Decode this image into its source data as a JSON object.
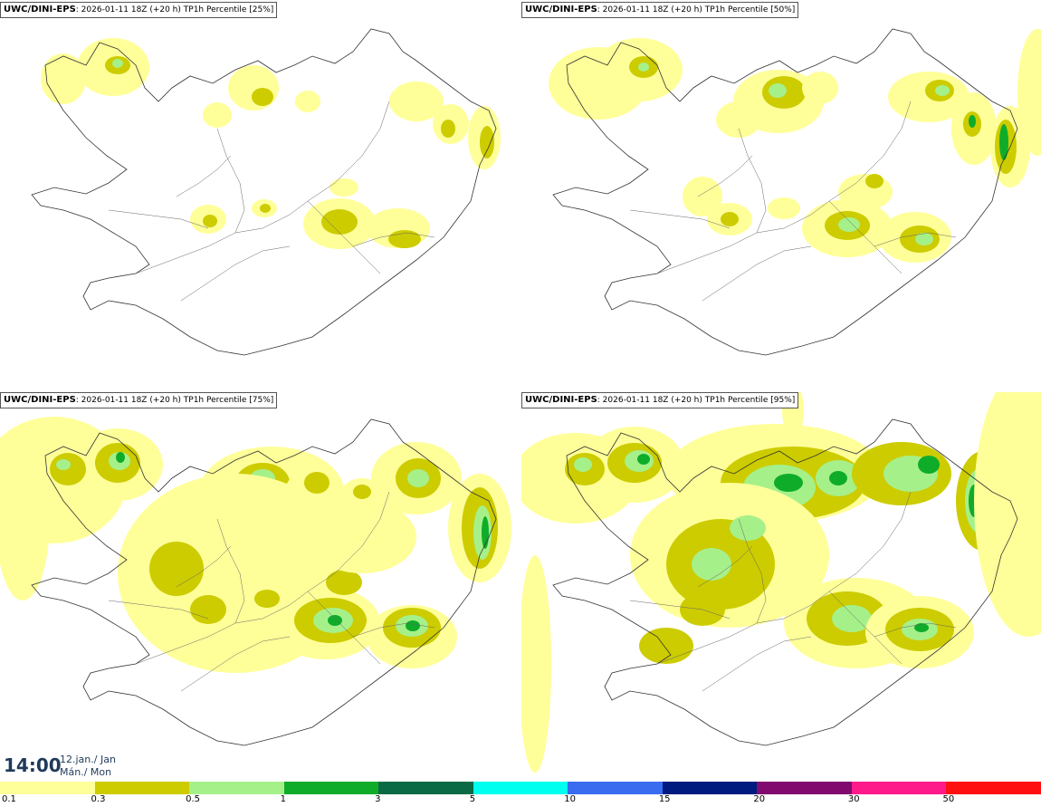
{
  "panels": [
    {
      "model": "UWC/DINI-EPS",
      "run": "2026-01-11 18Z (+20 h)",
      "param": "TP1h Percentile",
      "pct": "[25%]"
    },
    {
      "model": "UWC/DINI-EPS",
      "run": "2026-01-11 18Z (+20 h)",
      "param": "TP1h Percentile",
      "pct": "[50%]"
    },
    {
      "model": "UWC/DINI-EPS",
      "run": "2026-01-11 18Z (+20 h)",
      "param": "TP1h Percentile",
      "pct": "[75%]"
    },
    {
      "model": "UWC/DINI-EPS",
      "run": "2026-01-11 18Z (+20 h)",
      "param": "TP1h Percentile",
      "pct": "[95%]"
    }
  ],
  "valid_time": {
    "time": "14:00",
    "date": "12.jan./ Jan",
    "day": "Mán./ Mon"
  },
  "legend": {
    "colors": [
      "#ffff99",
      "#cccc00",
      "#a6f08a",
      "#0fac2a",
      "#0a6a45",
      "#00ffee",
      "#3a6cf0",
      "#001a80",
      "#800a6e",
      "#ff1a8c",
      "#ff1010"
    ],
    "ticks": [
      "0.1",
      "0.3",
      "0.5",
      "1",
      "3",
      "5",
      "10",
      "15",
      "20",
      "30",
      "50"
    ]
  }
}
